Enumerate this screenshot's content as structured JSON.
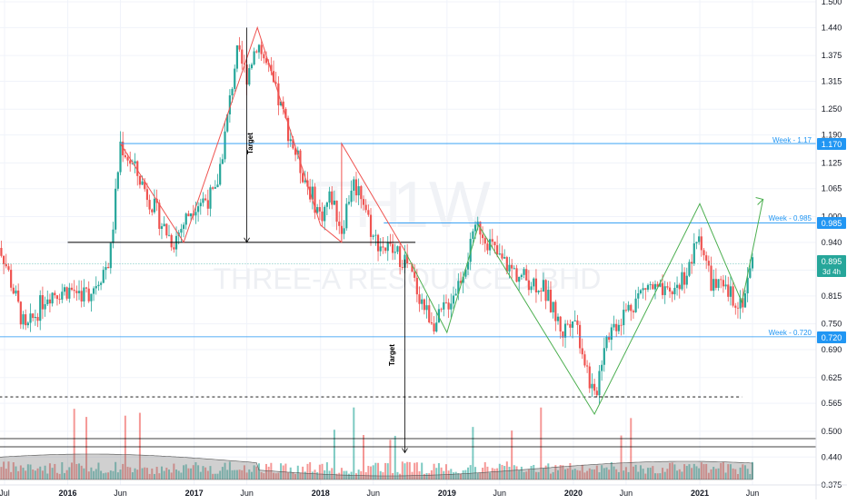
{
  "watermark": {
    "interval": "1W",
    "name": "THREE-A RESOURCES BHD",
    "symbol_prefix": "TH"
  },
  "price_badges": {
    "week_117": {
      "value": "1.170",
      "note": "Week - 1.17",
      "color": "#2196f3"
    },
    "week_0985": {
      "value": "0.985",
      "note": "Week - 0.985",
      "color": "#2196f3"
    },
    "week_072": {
      "value": "0.720",
      "note": "Week - 0.720",
      "color": "#2196f3"
    },
    "last": {
      "value": "0.895",
      "countdown": "3d 4h",
      "color": "#26a69a"
    }
  },
  "target_labels": {
    "first": "Target",
    "second": "Target"
  },
  "colors": {
    "up": "#26a69a",
    "down": "#ef5350",
    "level_line": "#2196f3",
    "neckline": "#000000",
    "pattern_red": "#ef5350",
    "pattern_green": "#4caf50",
    "volume_ma": "#9e9e9e"
  },
  "chart_data": {
    "type": "candlestick",
    "title": "",
    "y_axis": {
      "ticks": [
        "1.500",
        "1.440",
        "1.375",
        "1.315",
        "1.250",
        "1.190",
        "1.125",
        "1.065",
        "1.000",
        "0.940",
        "0.875",
        "0.815",
        "0.750",
        "0.690",
        "0.625",
        "0.565",
        "0.500",
        "0.440",
        "0.375"
      ],
      "range": [
        0.37,
        1.51
      ]
    },
    "x_axis": {
      "ticks": [
        "Jul",
        "2016",
        "Jun",
        "2017",
        "Jun",
        "2018",
        "Jun",
        "2019",
        "Jun",
        "2020",
        "Jun",
        "2021",
        "Jun"
      ],
      "tick_dates": [
        "2015-07",
        "2016-01",
        "2016-06",
        "2017-01",
        "2017-06",
        "2018-01",
        "2018-06",
        "2019-01",
        "2019-06",
        "2020-01",
        "2020-06",
        "2021-01",
        "2021-06"
      ]
    },
    "price_path": [
      [
        "2015-06",
        0.97
      ],
      [
        "2015-07",
        0.9
      ],
      [
        "2015-09",
        0.73
      ],
      [
        "2015-11",
        0.82
      ],
      [
        "2016-01",
        0.83
      ],
      [
        "2016-03",
        0.82
      ],
      [
        "2016-05",
        0.9
      ],
      [
        "2016-06",
        1.17
      ],
      [
        "2016-08",
        1.08
      ],
      [
        "2016-10",
        0.98
      ],
      [
        "2016-11",
        0.94
      ],
      [
        "2017-01",
        1.03
      ],
      [
        "2017-03",
        1.05
      ],
      [
        "2017-04",
        1.2
      ],
      [
        "2017-05",
        1.38
      ],
      [
        "2017-06",
        1.33
      ],
      [
        "2017-07",
        1.41
      ],
      [
        "2017-09",
        1.27
      ],
      [
        "2017-11",
        1.12
      ],
      [
        "2018-01",
        1.0
      ],
      [
        "2018-02",
        1.05
      ],
      [
        "2018-03",
        0.97
      ],
      [
        "2018-04",
        1.08
      ],
      [
        "2018-05",
        1.05
      ],
      [
        "2018-06",
        0.95
      ],
      [
        "2018-07",
        0.93
      ],
      [
        "2018-09",
        0.9
      ],
      [
        "2018-11",
        0.78
      ],
      [
        "2018-12",
        0.75
      ],
      [
        "2019-02",
        0.84
      ],
      [
        "2019-04",
        0.98
      ],
      [
        "2019-06",
        0.9
      ],
      [
        "2019-08",
        0.86
      ],
      [
        "2019-10",
        0.84
      ],
      [
        "2019-12",
        0.73
      ],
      [
        "2020-01",
        0.78
      ],
      [
        "2020-03",
        0.57
      ],
      [
        "2020-04",
        0.72
      ],
      [
        "2020-06",
        0.78
      ],
      [
        "2020-08",
        0.84
      ],
      [
        "2020-10",
        0.81
      ],
      [
        "2020-12",
        0.88
      ],
      [
        "2021-01",
        0.96
      ],
      [
        "2021-02",
        0.85
      ],
      [
        "2021-03",
        0.83
      ],
      [
        "2021-05",
        0.8
      ],
      [
        "2021-06",
        0.895
      ]
    ],
    "horizontal_levels": [
      {
        "price": 1.17,
        "label": "Week - 1.17",
        "from": "2016-06",
        "style": "solid"
      },
      {
        "price": 0.985,
        "label": "Week - 0.985",
        "from": "2018-07",
        "style": "solid"
      },
      {
        "price": 0.72,
        "label": "Week - 0.720",
        "from": "2015-06",
        "style": "solid"
      },
      {
        "price": 0.94,
        "from": "2016-01",
        "to": "2018-10",
        "style": "solid"
      },
      {
        "price": 0.58,
        "from": "2015-06",
        "to": "2020-06",
        "style": "dashed"
      },
      {
        "price": 0.58,
        "from": "2020-03",
        "to": "2021-05",
        "style": "dashed"
      },
      {
        "price": 0.89,
        "from": "2015-06",
        "to": "2021-06",
        "style": "dotted"
      }
    ],
    "pattern_lines": [
      {
        "color": "red",
        "points": [
          [
            "2016-06",
            1.17
          ],
          [
            "2016-12",
            0.94
          ],
          [
            "2017-07",
            1.44
          ],
          [
            "2018-01",
            0.98
          ],
          [
            "2018-03",
            0.94
          ],
          [
            "2018-03",
            1.17
          ],
          [
            "2018-09",
            0.92
          ]
        ]
      },
      {
        "color": "green",
        "points": [
          [
            "2018-09",
            0.92
          ],
          [
            "2019-01",
            0.73
          ],
          [
            "2019-04",
            0.98
          ],
          [
            "2020-03",
            0.54
          ],
          [
            "2021-01",
            1.03
          ],
          [
            "2021-05",
            0.8
          ],
          [
            "2021-07",
            1.04
          ]
        ]
      }
    ],
    "targets": [
      {
        "label": "Target",
        "date": "2017-06",
        "from_price": 1.44,
        "to_price": 0.94
      },
      {
        "label": "Target",
        "date": "2018-09",
        "from_price": 0.9,
        "to_price": 0.45
      }
    ],
    "volume_levels": {
      "high_line": true,
      "low_line": true
    }
  }
}
